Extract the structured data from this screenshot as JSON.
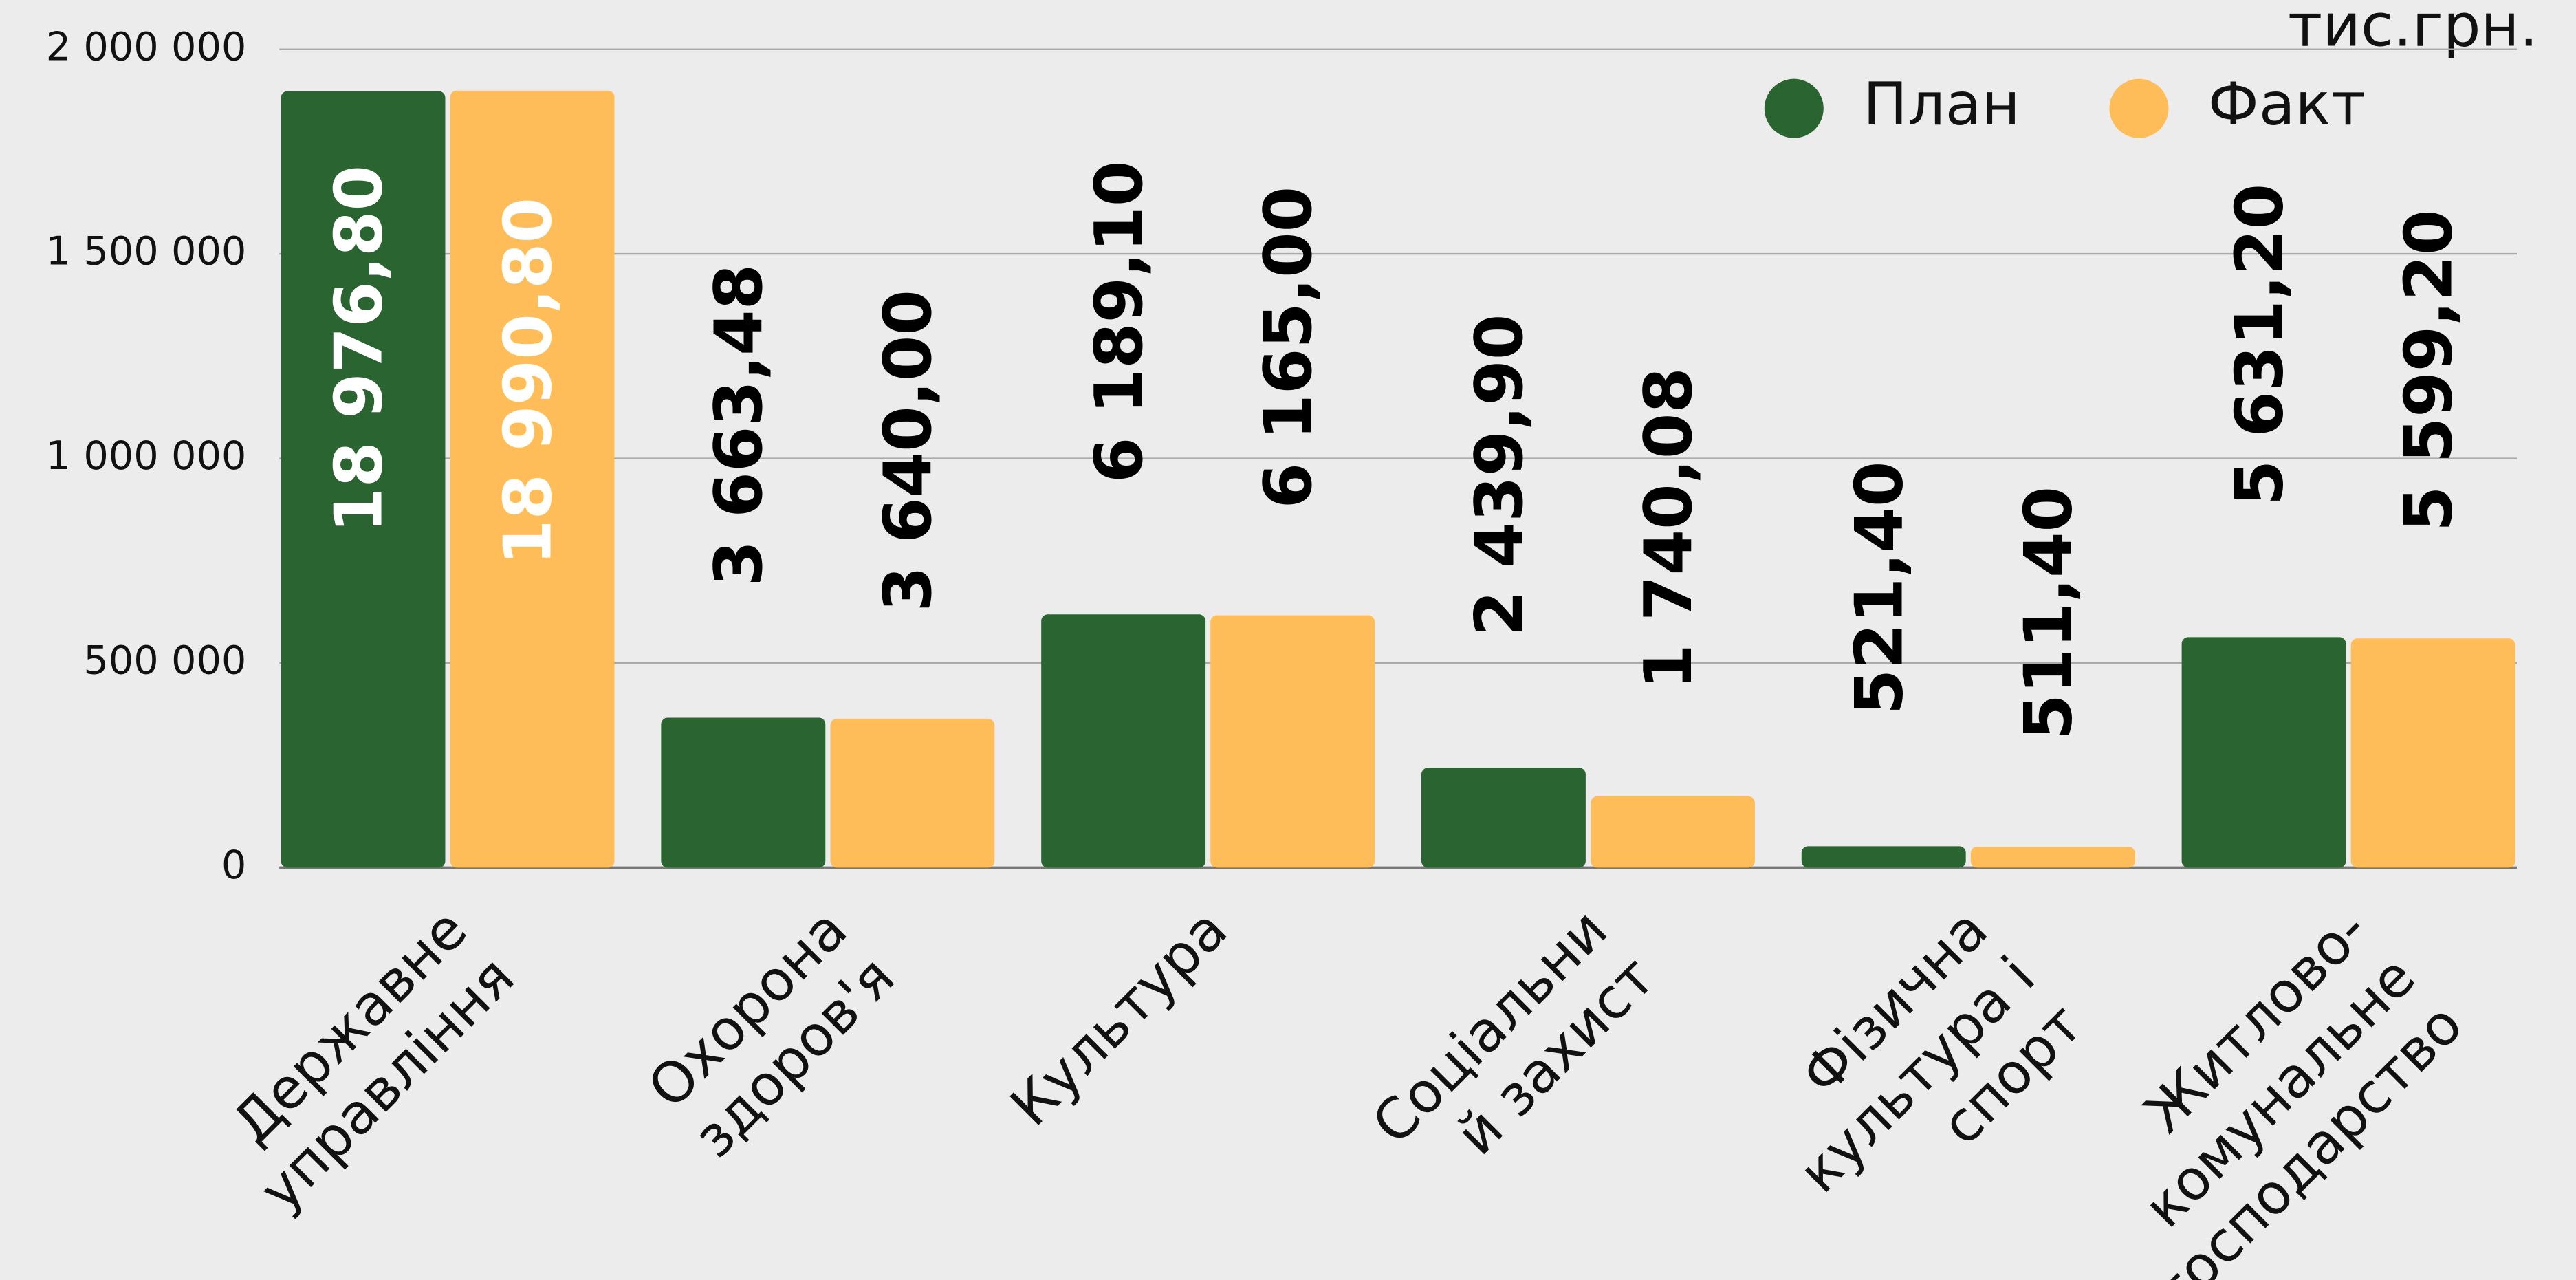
{
  "chart_data": {
    "type": "bar",
    "y_unit": "тис.грн.",
    "categories": [
      "Державне\nуправління",
      "Охорона\nздоров'я",
      "Культура",
      "Соціальни\nй захист",
      "Фізична\nкультура і\nспорт",
      "Житлово-\nкомунальне\nгосподарство"
    ],
    "series": [
      {
        "name": "План",
        "color": "#2a6430",
        "values": [
          1897680,
          366348,
          618910,
          243990,
          52140,
          563120
        ],
        "value_labels": [
          "18 976,80",
          "3 663,48",
          "6 189,10",
          "2 439,90",
          "521,40",
          "5 631,20"
        ]
      },
      {
        "name": "Факт",
        "color": "#ffbd59",
        "values": [
          1899080,
          364000,
          616500,
          174008,
          51140,
          559920
        ],
        "value_labels": [
          "18 990,80",
          "3 640,00",
          "6 165,00",
          "1 740,08",
          "511,40",
          "5 599,20"
        ]
      }
    ],
    "ylim": [
      0,
      2000000
    ],
    "yticks": [
      0,
      {
        "value": 500000,
        "label": "500 000"
      },
      {
        "value": 1000000,
        "label": "1 000 000"
      },
      {
        "value": 1500000,
        "label": "1 500 000"
      },
      {
        "value": 2000000,
        "label": "2 000 000"
      }
    ],
    "grid": true,
    "legend": "top-right"
  }
}
